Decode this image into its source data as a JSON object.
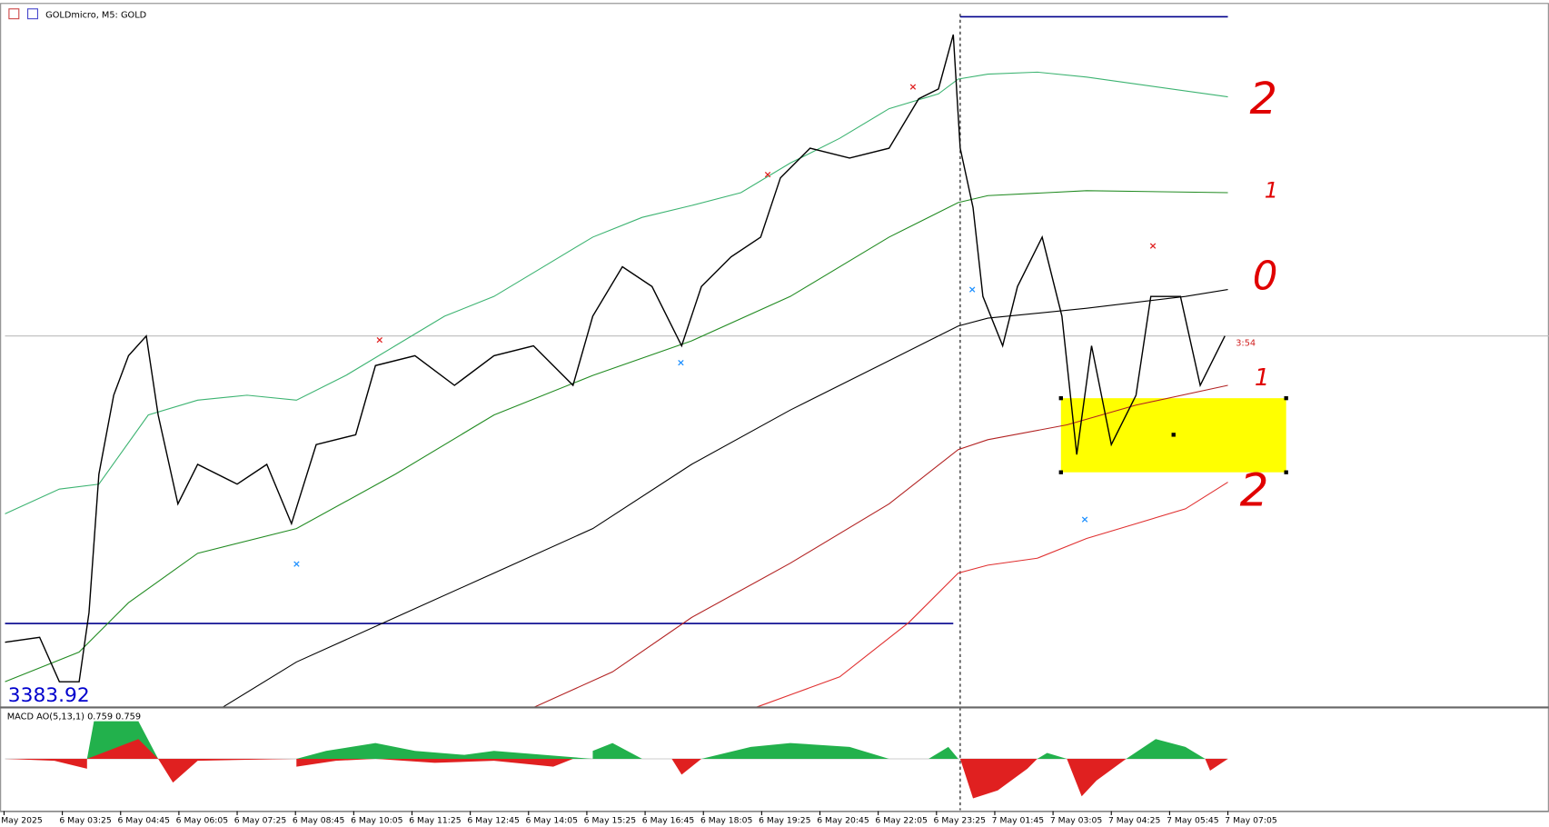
{
  "header": {
    "symbol": "GOLDmicro, M5: GOLD"
  },
  "price_label": "3383.92",
  "countdown": "3:54",
  "indicator": {
    "label": "MACD AO(5,13,1) 0.759 0.759"
  },
  "annotations": [
    "2",
    "1",
    "0",
    "1",
    "2"
  ],
  "time_axis": {
    "labels": [
      "May 2025",
      "6 May 03:25",
      "6 May 04:45",
      "6 May 06:05",
      "6 May 07:25",
      "6 May 08:45",
      "6 May 10:05",
      "6 May 11:25",
      "6 May 12:45",
      "6 May 14:05",
      "6 May 15:25",
      "6 May 16:45",
      "6 May 18:05",
      "6 May 19:25",
      "6 May 20:45",
      "6 May 22:05",
      "6 May 23:25",
      "7 May 01:45",
      "7 May 03:05",
      "7 May 04:25",
      "7 May 05:45",
      "7 May 07:05"
    ]
  }
}
